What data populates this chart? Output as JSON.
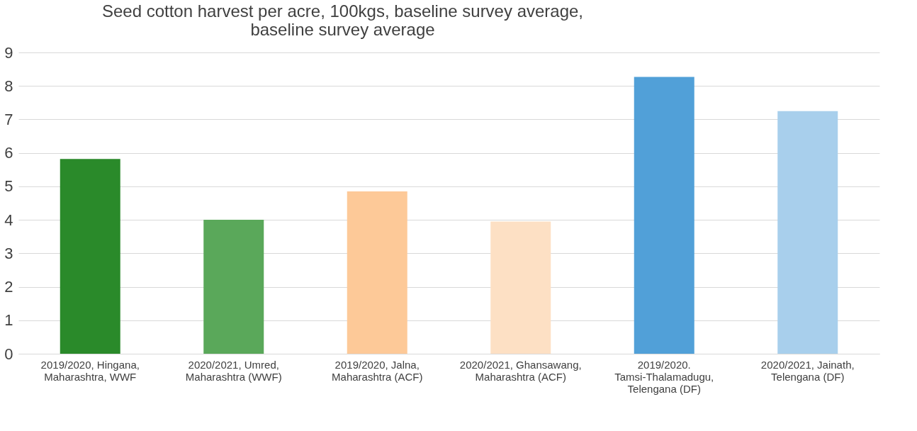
{
  "chart_data": {
    "type": "bar",
    "title": "Seed cotton harvest per acre, 100kgs, baseline survey average, baseline survey average",
    "categories": [
      "2019/2020, Hingana, Maharashtra, WWF",
      "2020/2021, Umred, Maharashtra (WWF)",
      "2019/2020, Jalna, Maharashtra  (ACF)",
      "2020/2021, Ghansawang, Maharashtra  (ACF)",
      "2019/2020. Tamsi-Thalamadugu, Telengana (DF)",
      "2020/2021, Jainath, Telengana  (DF)"
    ],
    "values": [
      5.82,
      4.0,
      4.85,
      3.95,
      8.27,
      7.25
    ],
    "colors": [
      "#2a8a2a",
      "#5aa85a",
      "#fdc998",
      "#fde0c4",
      "#51a0d8",
      "#a8cfec"
    ],
    "ylim": [
      0,
      9
    ],
    "yticks": [
      0,
      1,
      2,
      3,
      4,
      5,
      6,
      7,
      8,
      9
    ],
    "grid": "y"
  }
}
